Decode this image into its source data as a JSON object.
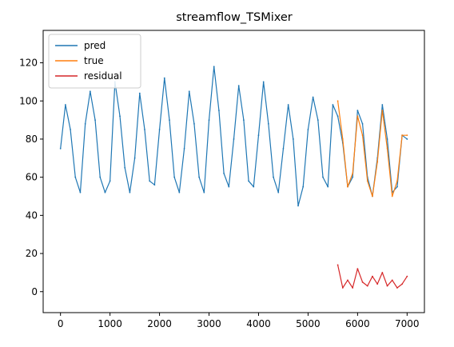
{
  "chart_data": {
    "type": "line",
    "title": "streamflow_TSMixer",
    "xlabel": "",
    "ylabel": "",
    "xlim": [
      -350,
      7350
    ],
    "ylim": [
      -11,
      137
    ],
    "x_ticks": [
      0,
      1000,
      2000,
      3000,
      4000,
      5000,
      6000,
      7000
    ],
    "y_ticks": [
      0,
      20,
      40,
      60,
      80,
      100,
      120
    ],
    "grid": false,
    "legend_position": "top-left",
    "series": [
      {
        "name": "pred",
        "color": "#1f77b4",
        "x": [
          0,
          100,
          200,
          300,
          400,
          500,
          600,
          700,
          800,
          900,
          1000,
          1100,
          1200,
          1300,
          1400,
          1500,
          1600,
          1700,
          1800,
          1900,
          2000,
          2100,
          2200,
          2300,
          2400,
          2500,
          2600,
          2700,
          2800,
          2900,
          3000,
          3100,
          3200,
          3300,
          3400,
          3500,
          3600,
          3700,
          3800,
          3900,
          4000,
          4100,
          4200,
          4300,
          4400,
          4500,
          4600,
          4700,
          4800,
          4900,
          5000,
          5100,
          5200,
          5300,
          5400,
          5500,
          5600,
          5700,
          5800,
          5900,
          6000,
          6100,
          6200,
          6300,
          6400,
          6500,
          6600,
          6700,
          6800,
          6900,
          7000
        ],
        "y": [
          75,
          98,
          85,
          60,
          52,
          88,
          105,
          90,
          60,
          52,
          58,
          110,
          92,
          65,
          52,
          70,
          104,
          85,
          58,
          56,
          85,
          112,
          90,
          60,
          52,
          75,
          105,
          88,
          60,
          52,
          90,
          118,
          95,
          62,
          55,
          80,
          108,
          90,
          58,
          55,
          82,
          110,
          88,
          60,
          52,
          75,
          98,
          80,
          45,
          55,
          85,
          102,
          90,
          60,
          55,
          98,
          92,
          78,
          55,
          60,
          95,
          88,
          60,
          50,
          70,
          98,
          80,
          52,
          55,
          82,
          80
        ]
      },
      {
        "name": "true",
        "color": "#ff7f0e",
        "x": [
          5600,
          5700,
          5800,
          5900,
          6000,
          6100,
          6200,
          6300,
          6400,
          6500,
          6600,
          6700,
          6800,
          6900,
          7000
        ],
        "y": [
          100,
          80,
          55,
          62,
          92,
          82,
          58,
          50,
          68,
          95,
          75,
          50,
          58,
          82,
          82
        ]
      },
      {
        "name": "residual",
        "color": "#d62728",
        "x": [
          5600,
          5700,
          5800,
          5900,
          6000,
          6100,
          6200,
          6300,
          6400,
          6500,
          6600,
          6700,
          6800,
          6900,
          7000
        ],
        "y": [
          14,
          2,
          6,
          2,
          12,
          5,
          3,
          8,
          4,
          10,
          3,
          6,
          2,
          4,
          8
        ]
      }
    ]
  }
}
